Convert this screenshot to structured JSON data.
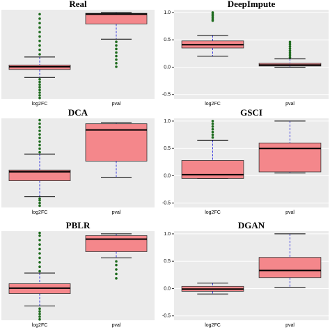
{
  "chart_data": [
    {
      "type": "box",
      "title": "Real",
      "categories": [
        "log2FC",
        "pval"
      ],
      "color": "#f4878b",
      "outlier_color": "#1e6b1e",
      "ylim": [
        0,
        1
      ],
      "boxes": [
        {
          "low": 0.24,
          "q1": 0.33,
          "median": 0.36,
          "q3": 0.38,
          "high": 0.47,
          "outliers": [
            0.01,
            0.04,
            0.07,
            0.1,
            0.13,
            0.16,
            0.19,
            0.22,
            0.5,
            0.55,
            0.6,
            0.65,
            0.7,
            0.75,
            0.8,
            0.85,
            0.9,
            0.95
          ]
        },
        {
          "low": 0.67,
          "q1": 0.84,
          "median": 0.95,
          "q3": 0.96,
          "high": 0.97,
          "outliers": [
            0.36,
            0.4,
            0.44,
            0.48,
            0.52,
            0.56,
            0.6,
            0.64
          ]
        }
      ]
    },
    {
      "type": "box",
      "title": "DeepImpute",
      "categories": [
        "log2FC",
        "pval"
      ],
      "color": "#f4878b",
      "outlier_color": "#1e6b1e",
      "ylim": [
        -0.58,
        1.05
      ],
      "yticks": [
        -0.5,
        {
          "value": 0,
          "label": "0.0"
        },
        0.5,
        {
          "value": 1,
          "label": "1.0"
        }
      ],
      "boxes": [
        {
          "low": 0.2,
          "q1": 0.35,
          "median": 0.41,
          "q3": 0.48,
          "high": 0.58,
          "outliers": [
            0.85,
            0.88,
            0.91,
            0.94,
            0.97,
            1.0
          ]
        },
        {
          "low": 0.0,
          "q1": 0.02,
          "median": 0.04,
          "q3": 0.07,
          "high": 0.15,
          "outliers": [
            0.18,
            0.22,
            0.26,
            0.3,
            0.34,
            0.38,
            0.42,
            0.46
          ]
        }
      ]
    },
    {
      "type": "box",
      "title": "DCA",
      "categories": [
        "log2FC",
        "pval"
      ],
      "color": "#f4878b",
      "outlier_color": "#1e6b1e",
      "ylim": [
        0,
        1
      ],
      "boxes": [
        {
          "low": 0.12,
          "q1": 0.3,
          "median": 0.4,
          "q3": 0.42,
          "high": 0.6,
          "outliers": [
            0.02,
            0.05,
            0.08,
            0.1,
            0.62,
            0.66,
            0.7,
            0.74,
            0.78,
            0.82,
            0.86,
            0.9,
            0.94,
            0.98
          ]
        },
        {
          "low": 0.34,
          "q1": 0.52,
          "median": 0.87,
          "q3": 0.94,
          "high": 0.95,
          "outliers": []
        }
      ]
    },
    {
      "type": "box",
      "title": "GSCI",
      "categories": [
        "log2FC",
        "pval"
      ],
      "color": "#f4878b",
      "outlier_color": "#1e6b1e",
      "ylim": [
        -0.58,
        1.05
      ],
      "yticks": [
        -0.5,
        {
          "value": 0,
          "label": "0.0"
        },
        0.5,
        {
          "value": 1,
          "label": "1.0"
        }
      ],
      "boxes": [
        {
          "low": -0.05,
          "q1": -0.05,
          "median": 0.02,
          "q3": 0.28,
          "high": 0.65,
          "outliers": [
            0.7,
            0.75,
            0.8,
            0.85,
            0.9,
            0.95,
            1.0
          ]
        },
        {
          "low": 0.05,
          "q1": 0.07,
          "median": 0.5,
          "q3": 0.6,
          "high": 1.0,
          "outliers": []
        }
      ]
    },
    {
      "type": "box",
      "title": "PBLR",
      "categories": [
        "log2FC",
        "pval"
      ],
      "color": "#f4878b",
      "outlier_color": "#1e6b1e",
      "ylim": [
        0,
        1
      ],
      "boxes": [
        {
          "low": 0.16,
          "q1": 0.3,
          "median": 0.36,
          "q3": 0.41,
          "high": 0.53,
          "outliers": [
            0.01,
            0.04,
            0.07,
            0.1,
            0.13,
            0.55,
            0.6,
            0.65,
            0.7,
            0.75,
            0.8,
            0.85,
            0.9,
            0.95,
            0.98
          ]
        },
        {
          "low": 0.7,
          "q1": 0.77,
          "median": 0.91,
          "q3": 0.95,
          "high": 0.97,
          "outliers": [
            0.47,
            0.52,
            0.57,
            0.62,
            0.66
          ]
        }
      ]
    },
    {
      "type": "box",
      "title": "DGAN",
      "categories": [
        "log2FC",
        "pval"
      ],
      "color": "#f4878b",
      "outlier_color": "#1e6b1e",
      "ylim": [
        -0.58,
        1.05
      ],
      "yticks": [
        -0.5,
        {
          "value": 0,
          "label": "0.0"
        },
        0.5,
        {
          "value": 1,
          "label": "1.0"
        }
      ],
      "boxes": [
        {
          "low": -0.1,
          "q1": -0.05,
          "median": -0.01,
          "q3": 0.04,
          "high": 0.1,
          "outliers": []
        },
        {
          "low": 0.02,
          "q1": 0.2,
          "median": 0.33,
          "q3": 0.57,
          "high": 1.0,
          "outliers": []
        }
      ]
    }
  ]
}
